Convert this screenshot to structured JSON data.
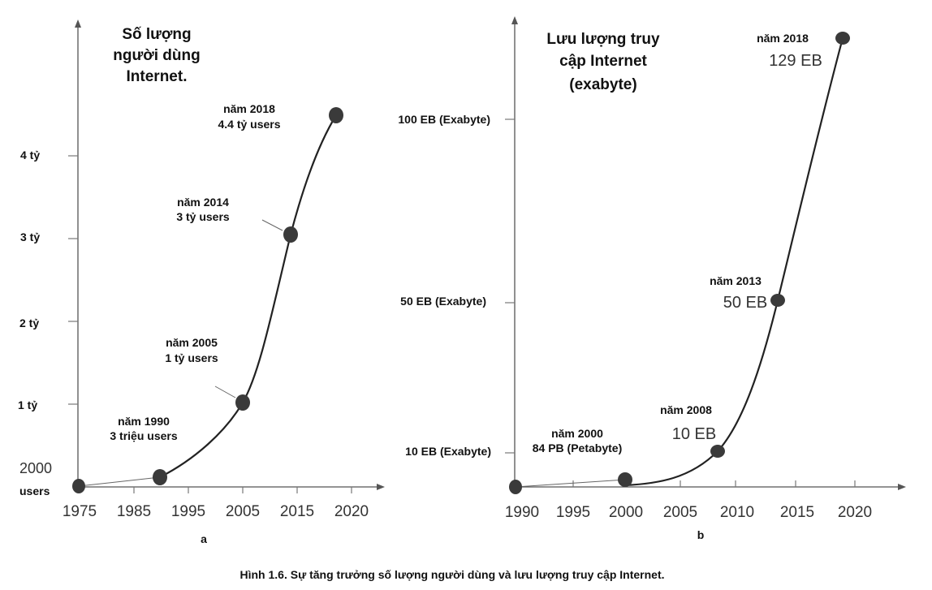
{
  "caption": "Hình 1.6. Sự tăng trưởng số lượng người dùng và lưu lượng truy cập Internet.",
  "chart_data": [
    {
      "type": "line",
      "panel_label": "a",
      "title_lines": [
        "Số lượng",
        "người dùng",
        "Internet."
      ],
      "x_ticks": [
        "1975",
        "1985",
        "1995",
        "2005",
        "2015",
        "2020"
      ],
      "y_ticks": [
        "1 tỷ",
        "2 tỷ",
        "3 tỷ",
        "4 tỷ"
      ],
      "origin_label_lines": [
        "2000",
        "users"
      ],
      "series": [
        {
          "x": [
            1975,
            1990,
            2005,
            2014,
            2018
          ],
          "y": [
            2e-06,
            0.003,
            1,
            3,
            4.4
          ]
        }
      ],
      "annotations": [
        {
          "lines": [
            "năm 1990",
            "3 triệu users"
          ]
        },
        {
          "lines": [
            "năm 2005",
            "1 tỷ users"
          ]
        },
        {
          "lines": [
            "năm 2014",
            "3 tỷ users"
          ]
        },
        {
          "lines": [
            "năm 2018",
            "4.4 tỷ users"
          ]
        }
      ]
    },
    {
      "type": "line",
      "panel_label": "b",
      "title_lines": [
        "Lưu lượng truy",
        "cập Internet",
        "(exabyte)"
      ],
      "x_ticks": [
        "1990",
        "1995",
        "2000",
        "2005",
        "2010",
        "2015",
        "2020"
      ],
      "y_ticks": [
        "10 EB (Exabyte)",
        "50 EB (Exabyte)",
        "100 EB (Exabyte)"
      ],
      "series": [
        {
          "x": [
            1990,
            2000,
            2008,
            2013,
            2018
          ],
          "y": [
            0,
            0.084,
            10,
            50,
            129
          ]
        }
      ],
      "annotations": [
        {
          "lines": [
            "năm 2000",
            "84 PB (Petabyte)"
          ]
        },
        {
          "lines": [
            "năm 2008"
          ],
          "value": "10 EB"
        },
        {
          "lines": [
            "năm 2013"
          ],
          "value": "50 EB"
        },
        {
          "lines": [
            "năm 2018"
          ],
          "value": "129 EB"
        }
      ]
    }
  ]
}
